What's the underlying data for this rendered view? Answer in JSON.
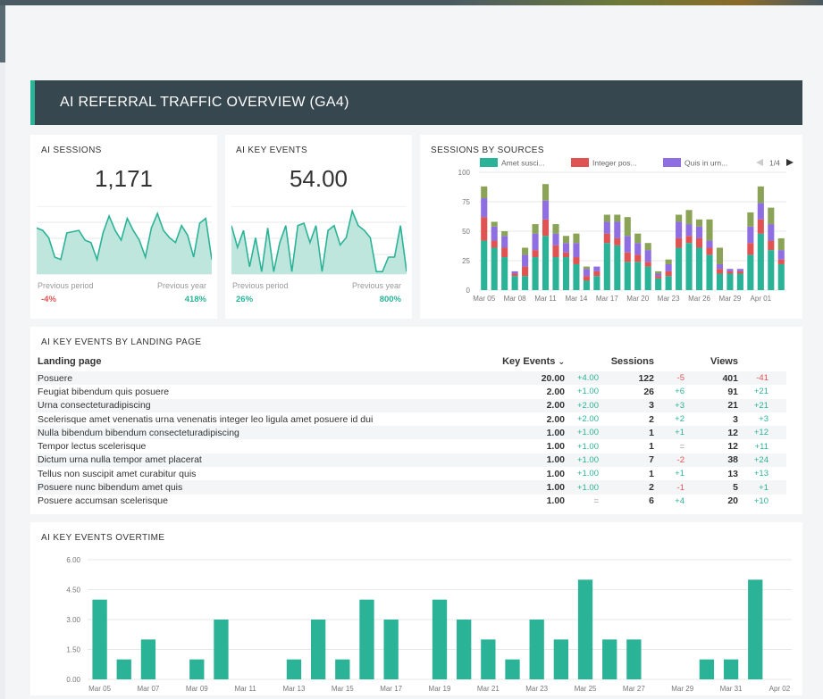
{
  "header": {
    "title": "AI REFERRAL TRAFFIC OVERVIEW (GA4)"
  },
  "kpis": [
    {
      "title": "AI SESSIONS",
      "value": "1,171",
      "prev_period_label": "Previous period",
      "prev_period_value": "-4%",
      "prev_year_label": "Previous year",
      "prev_year_value": "418%",
      "sparkline": [
        38,
        36,
        30,
        14,
        12,
        34,
        35,
        36,
        28,
        26,
        12,
        34,
        48,
        36,
        28,
        46,
        36,
        28,
        14,
        38,
        50,
        36,
        30,
        26,
        40,
        32,
        14,
        42,
        46,
        12
      ]
    },
    {
      "title": "AI KEY EVENTS",
      "value": "54.00",
      "prev_period_label": "Previous period",
      "prev_period_value": "26%",
      "prev_year_label": "Previous year",
      "prev_year_value": "800%",
      "sparkline": [
        40,
        22,
        36,
        6,
        30,
        2,
        38,
        2,
        26,
        40,
        2,
        40,
        42,
        26,
        40,
        2,
        36,
        40,
        24,
        30,
        52,
        40,
        36,
        30,
        2,
        2,
        14,
        14,
        40,
        2
      ]
    }
  ],
  "sources_chart": {
    "title": "SESSIONS BY SOURCES",
    "pager": "1/4",
    "colors": {
      "accent": "#2bb397",
      "negative": "#e05353",
      "header_bg": "#37474f"
    }
  },
  "table": {
    "title": "AI KEY EVENTS BY LANDING PAGE",
    "columns": {
      "landing": "Landing page",
      "key_events": "Key Events",
      "sessions": "Sessions",
      "views": "Views"
    },
    "rows": [
      {
        "page": "Posuere",
        "ke": "20.00",
        "ke_d": "+4.00",
        "s": "122",
        "s_d": "-5",
        "v": "401",
        "v_d": "-41"
      },
      {
        "page": "Feugiat bibendum quis posuere",
        "ke": "2.00",
        "ke_d": "+1.00",
        "s": "26",
        "s_d": "+6",
        "v": "91",
        "v_d": "+21"
      },
      {
        "page": "Urna consecteturadipiscing",
        "ke": "2.00",
        "ke_d": "+2.00",
        "s": "3",
        "s_d": "+3",
        "v": "21",
        "v_d": "+21"
      },
      {
        "page": "Scelerisque amet venenatis urna venenatis integer leo ligula amet posuere id dui",
        "ke": "2.00",
        "ke_d": "+2.00",
        "s": "2",
        "s_d": "+2",
        "v": "3",
        "v_d": "+3"
      },
      {
        "page": "Nulla bibendum bibendum consecteturadipiscing",
        "ke": "1.00",
        "ke_d": "+1.00",
        "s": "1",
        "s_d": "+1",
        "v": "12",
        "v_d": "+12"
      },
      {
        "page": "Tempor lectus scelerisque",
        "ke": "1.00",
        "ke_d": "+1.00",
        "s": "1",
        "s_d": "=",
        "v": "12",
        "v_d": "+11"
      },
      {
        "page": "Dictum urna nulla tempor amet placerat",
        "ke": "1.00",
        "ke_d": "+1.00",
        "s": "7",
        "s_d": "-2",
        "v": "38",
        "v_d": "+24"
      },
      {
        "page": "Tellus non suscipit amet curabitur quis",
        "ke": "1.00",
        "ke_d": "+1.00",
        "s": "1",
        "s_d": "+1",
        "v": "13",
        "v_d": "+13"
      },
      {
        "page": "Posuere nunc bibendum amet quis",
        "ke": "1.00",
        "ke_d": "+1.00",
        "s": "2",
        "s_d": "-1",
        "v": "5",
        "v_d": "+1"
      },
      {
        "page": "Posuere accumsan scelerisque",
        "ke": "1.00",
        "ke_d": "=",
        "s": "6",
        "s_d": "+4",
        "v": "20",
        "v_d": "+10"
      }
    ]
  },
  "overtime": {
    "title": "AI KEY EVENTS OVERTIME"
  },
  "chart_data": [
    {
      "type": "bar",
      "title": "SESSIONS BY SOURCES",
      "stacked": true,
      "legend_position": "top",
      "ylim": [
        0,
        100
      ],
      "yticks": [
        "0",
        "25",
        "50",
        "75",
        "100"
      ],
      "x": [
        "Mar 05",
        "Mar 06",
        "Mar 07",
        "Mar 08",
        "Mar 09",
        "Mar 10",
        "Mar 11",
        "Mar 12",
        "Mar 13",
        "Mar 14",
        "Mar 15",
        "Mar 16",
        "Mar 17",
        "Mar 18",
        "Mar 19",
        "Mar 20",
        "Mar 21",
        "Mar 22",
        "Mar 23",
        "Mar 24",
        "Mar 25",
        "Mar 26",
        "Mar 27",
        "Mar 28",
        "Mar 29",
        "Mar 30",
        "Mar 31",
        "Apr 01",
        "Apr 02",
        "Apr 03"
      ],
      "xtick_labels": [
        "Mar 05",
        "Mar 08",
        "Mar 11",
        "Mar 14",
        "Mar 17",
        "Mar 20",
        "Mar 23",
        "Mar 26",
        "Mar 29",
        "Apr 01"
      ],
      "series": [
        {
          "name": "Amet susci...",
          "color": "#2bb397",
          "values": [
            42,
            36,
            28,
            12,
            12,
            28,
            46,
            28,
            28,
            22,
            8,
            12,
            40,
            38,
            24,
            24,
            20,
            10,
            12,
            36,
            40,
            36,
            30,
            14,
            14,
            14,
            30,
            48,
            34,
            22
          ]
        },
        {
          "name": "Integer pos...",
          "color": "#e05353",
          "values": [
            20,
            6,
            8,
            2,
            8,
            6,
            14,
            10,
            4,
            6,
            4,
            4,
            8,
            6,
            8,
            6,
            4,
            2,
            4,
            8,
            6,
            8,
            6,
            4,
            2,
            2,
            10,
            12,
            8,
            4
          ]
        },
        {
          "name": "Quis in urn...",
          "color": "#8e6ee0",
          "values": [
            16,
            12,
            10,
            2,
            10,
            14,
            16,
            10,
            8,
            12,
            6,
            4,
            10,
            14,
            14,
            10,
            10,
            2,
            6,
            14,
            10,
            10,
            6,
            4,
            2,
            2,
            14,
            14,
            14,
            8
          ]
        },
        {
          "name": "",
          "color": "#8aa357",
          "values": [
            10,
            4,
            4,
            0,
            6,
            8,
            14,
            8,
            6,
            8,
            2,
            0,
            6,
            6,
            16,
            8,
            6,
            2,
            4,
            6,
            12,
            6,
            18,
            14,
            0,
            0,
            12,
            14,
            14,
            10
          ]
        }
      ]
    },
    {
      "type": "bar",
      "title": "AI KEY EVENTS OVERTIME",
      "ylim": [
        0,
        6
      ],
      "yticks": [
        "0.00",
        "1.50",
        "3.00",
        "4.50",
        "6.00"
      ],
      "x": [
        "Mar 05",
        "Mar 06",
        "Mar 07",
        "Mar 08",
        "Mar 09",
        "Mar 10",
        "Mar 11",
        "Mar 12",
        "Mar 13",
        "Mar 14",
        "Mar 15",
        "Mar 16",
        "Mar 17",
        "Mar 18",
        "Mar 19",
        "Mar 20",
        "Mar 21",
        "Mar 22",
        "Mar 23",
        "Mar 24",
        "Mar 25",
        "Mar 26",
        "Mar 27",
        "Mar 28",
        "Mar 29",
        "Mar 30",
        "Mar 31",
        "Apr 01",
        "Apr 02"
      ],
      "xtick_labels": [
        "Mar 05",
        "Mar 07",
        "Mar 09",
        "Mar 11",
        "Mar 13",
        "Mar 15",
        "Mar 17",
        "Mar 19",
        "Mar 21",
        "Mar 23",
        "Mar 25",
        "Mar 27",
        "Mar 29",
        "Mar 31",
        "Apr 02"
      ],
      "values": [
        4,
        1,
        2,
        0,
        1,
        3,
        0,
        0,
        1,
        3,
        1,
        4,
        3,
        0,
        4,
        3,
        2,
        1,
        3,
        2,
        5,
        2,
        2,
        0,
        0,
        1,
        1,
        5,
        0
      ],
      "color": "#2bb397"
    }
  ]
}
